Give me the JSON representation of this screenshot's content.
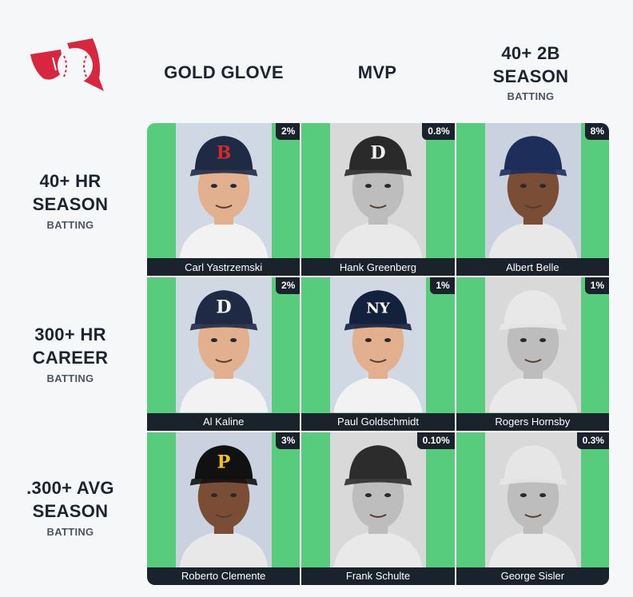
{
  "columns": [
    {
      "title": "GOLD GLOVE",
      "sub": ""
    },
    {
      "title": "MVP",
      "sub": ""
    },
    {
      "title": "40+ 2B SEASON",
      "sub": "BATTING"
    }
  ],
  "rows": [
    {
      "title": "40+ HR SEASON",
      "sub": "BATTING"
    },
    {
      "title": "300+ HR CAREER",
      "sub": "BATTING"
    },
    {
      "title": ".300+ AVG SEASON",
      "sub": "BATTING"
    }
  ],
  "cells": [
    {
      "name": "Carl Yastrzemski",
      "pct": "2%",
      "cap_letter": "B",
      "cap_color": "#1f2a44",
      "letter_color": "#d12a2a",
      "tone": "color"
    },
    {
      "name": "Hank Greenberg",
      "pct": "0.8%",
      "cap_letter": "D",
      "cap_color": "#2a2a2a",
      "letter_color": "#f0f0f0",
      "tone": "bw"
    },
    {
      "name": "Albert Belle",
      "pct": "8%",
      "cap_letter": "",
      "cap_color": "#1d2e5a",
      "letter_color": "#d12a2a",
      "tone": "dark"
    },
    {
      "name": "Al Kaline",
      "pct": "2%",
      "cap_letter": "D",
      "cap_color": "#1f2a44",
      "letter_color": "#f5f5f5",
      "tone": "color"
    },
    {
      "name": "Paul Goldschmidt",
      "pct": "1%",
      "cap_letter": "NY",
      "cap_color": "#14213d",
      "letter_color": "#ffffff",
      "tone": "color"
    },
    {
      "name": "Rogers Hornsby",
      "pct": "1%",
      "cap_letter": "",
      "cap_color": "#e8e8e8",
      "letter_color": "#999999",
      "tone": "bw"
    },
    {
      "name": "Roberto Clemente",
      "pct": "3%",
      "cap_letter": "P",
      "cap_color": "#111111",
      "letter_color": "#f2c21b",
      "tone": "dark"
    },
    {
      "name": "Frank Schulte",
      "pct": "0.10%",
      "cap_letter": "",
      "cap_color": "#2c2c2c",
      "letter_color": "#f0f0f0",
      "tone": "bw"
    },
    {
      "name": "George Sisler",
      "pct": "0.3%",
      "cap_letter": "",
      "cap_color": "#e6e6e6",
      "letter_color": "#999999",
      "tone": "bw"
    }
  ],
  "colors": {
    "cell_green": "#57cc7c",
    "label_bar": "#1a222c",
    "logo_red": "#d7263d"
  },
  "icons": {
    "logo": "baseball-logo-icon"
  }
}
